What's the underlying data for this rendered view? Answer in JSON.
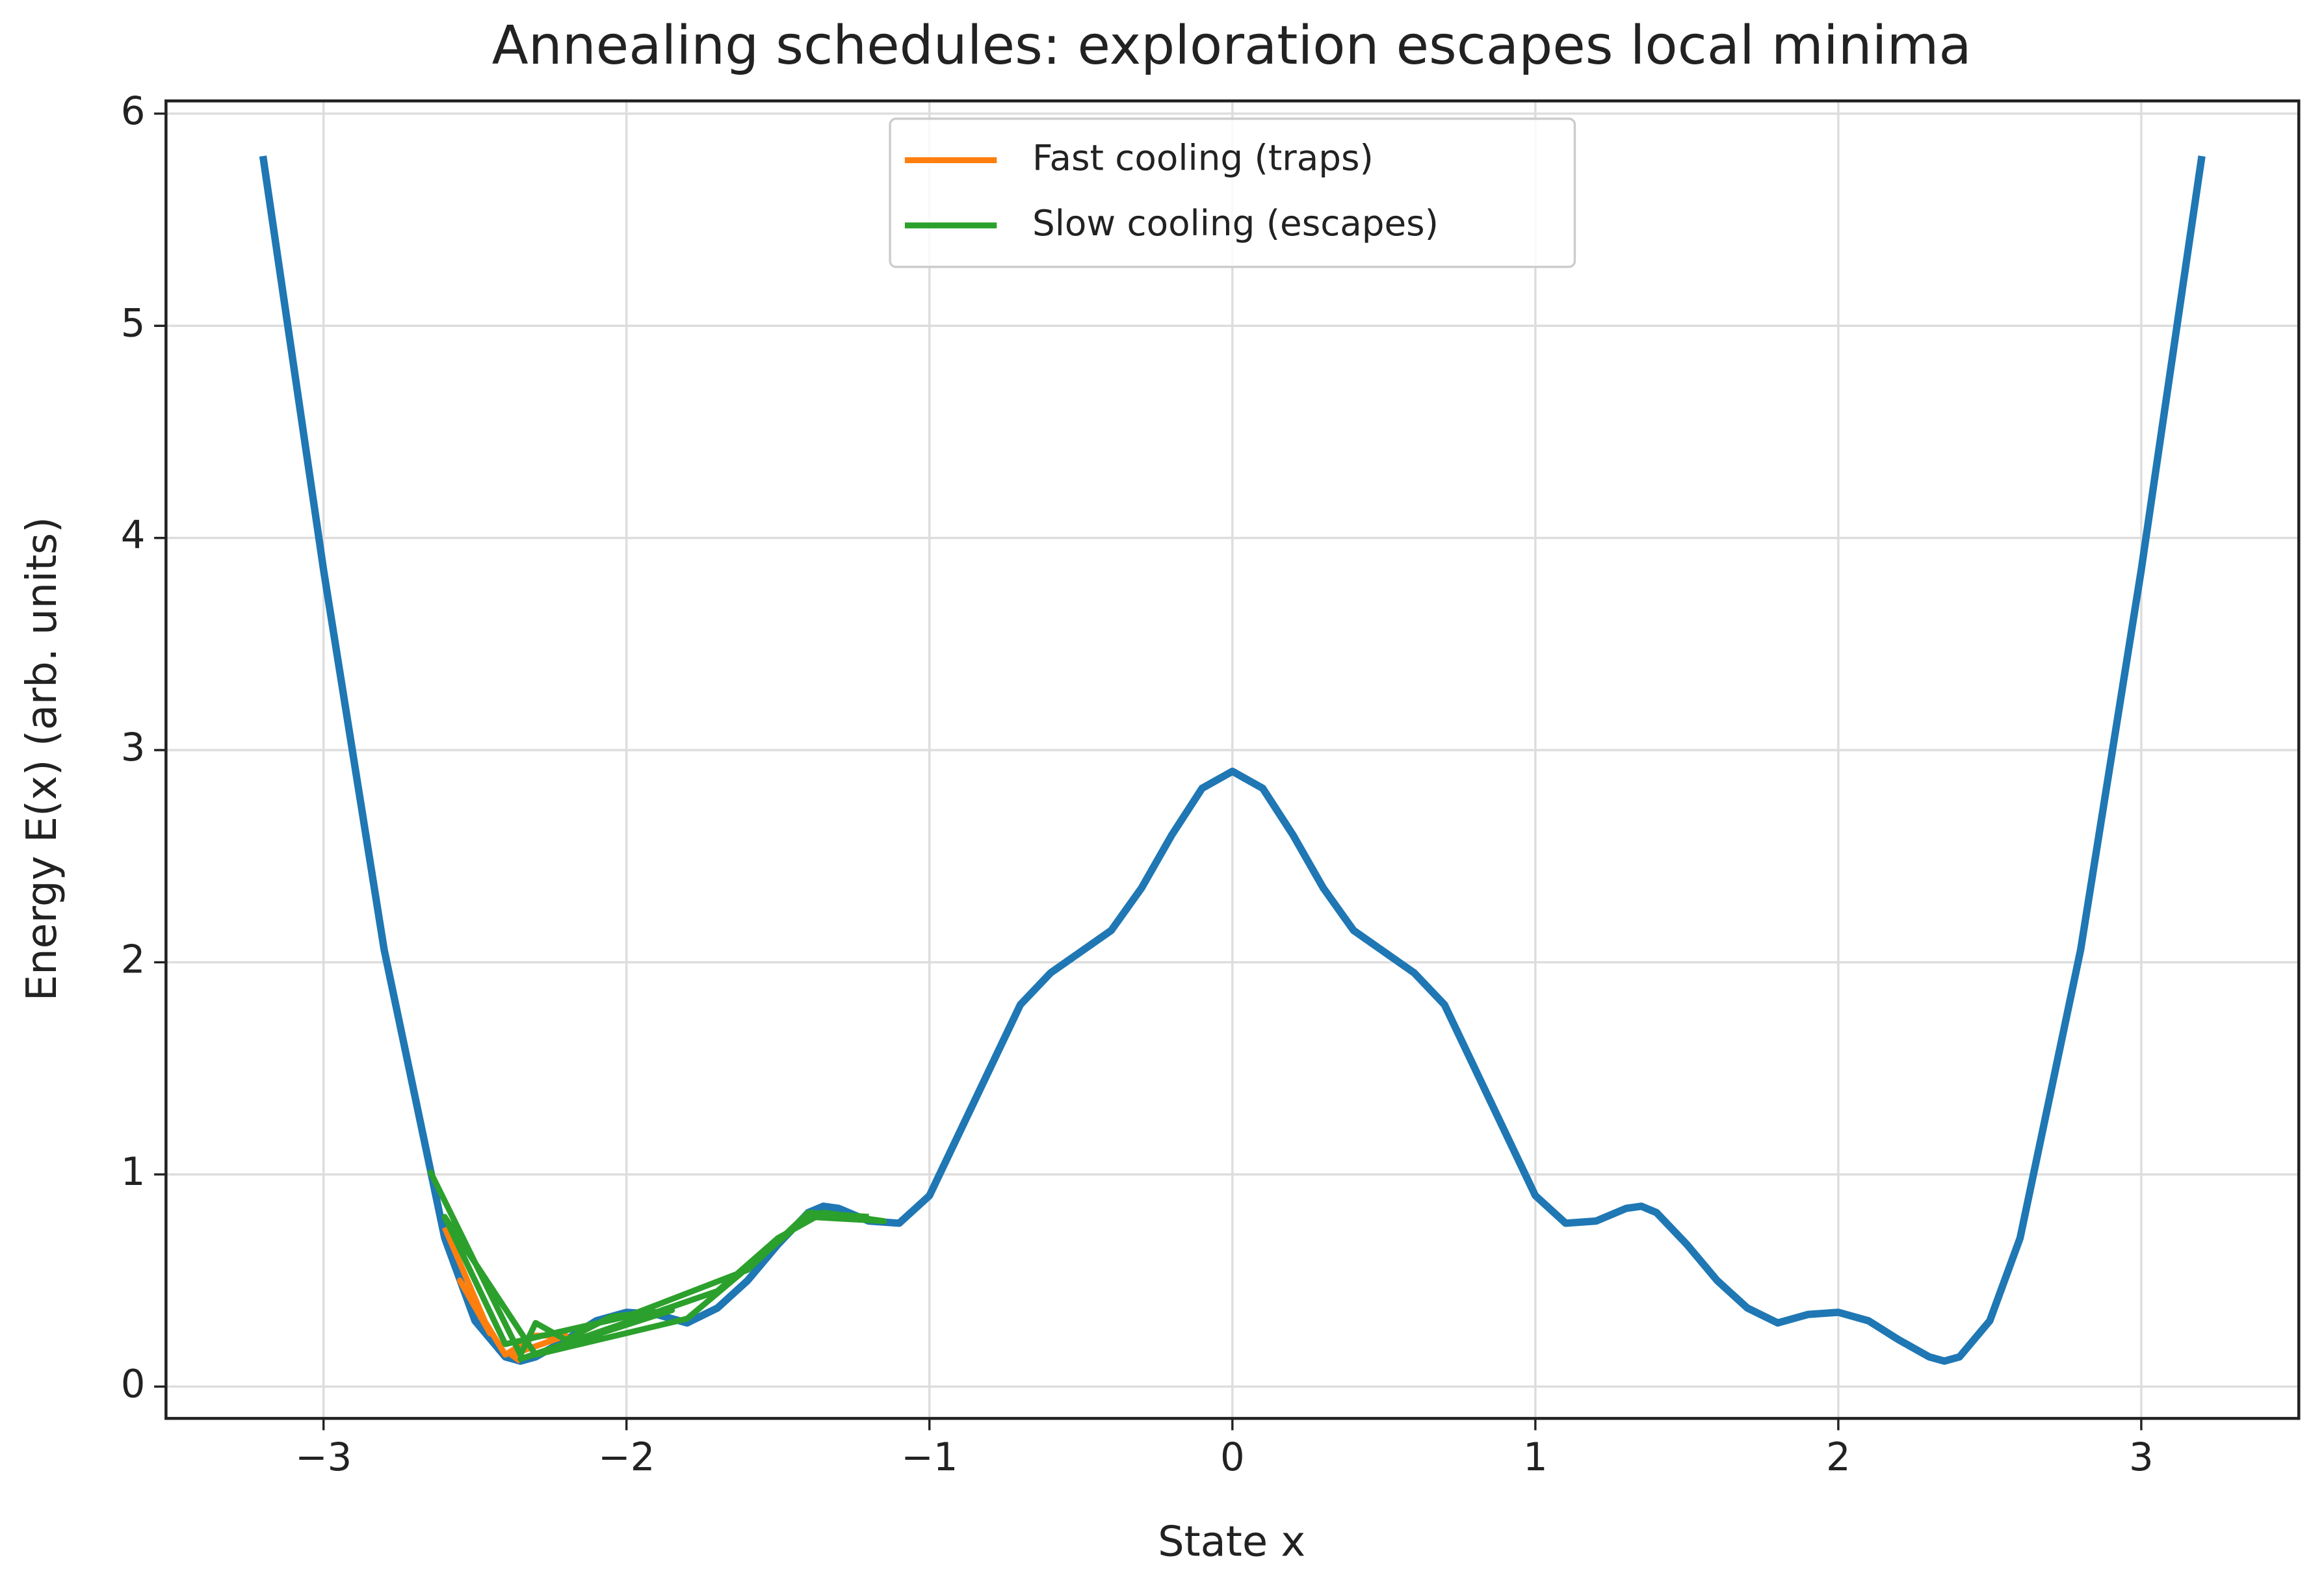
{
  "chart_data": {
    "type": "line",
    "title": "Annealing schedules: exploration escapes local minima",
    "xlabel": "State x",
    "ylabel": "Energy E(x) (arb. units)",
    "xlim": [
      -3.52,
      3.52
    ],
    "ylim": [
      -0.15,
      6.06
    ],
    "xticks": [
      {
        "value": -3,
        "label": "−3"
      },
      {
        "value": -2,
        "label": "−2"
      },
      {
        "value": -1,
        "label": "−1"
      },
      0,
      1,
      2,
      3
    ],
    "yticks": [
      0,
      1,
      2,
      3,
      4,
      5,
      6
    ],
    "grid": true,
    "legend_loc": "upper center",
    "series": [
      {
        "color": "#1f77b4",
        "x": [
          -3.2,
          -3.0,
          -2.8,
          -2.6,
          -2.5,
          -2.4,
          -2.35,
          -2.3,
          -2.2,
          -2.1,
          -2.0,
          -1.9,
          -1.8,
          -1.7,
          -1.6,
          -1.5,
          -1.4,
          -1.35,
          -1.3,
          -1.2,
          -1.1,
          -1.0,
          -0.9,
          -0.8,
          -0.7,
          -0.6,
          -0.5,
          -0.4,
          -0.3,
          -0.2,
          -0.1,
          0,
          0.1,
          0.2,
          0.3,
          0.4,
          0.5,
          0.6,
          0.7,
          0.8,
          0.9,
          1.0,
          1.1,
          1.2,
          1.3,
          1.35,
          1.4,
          1.5,
          1.6,
          1.7,
          1.8,
          1.9,
          2.0,
          2.1,
          2.2,
          2.3,
          2.35,
          2.4,
          2.5,
          2.6,
          2.8,
          3.0,
          3.2
        ],
        "values": [
          5.8,
          3.85,
          2.06,
          0.7,
          0.31,
          0.14,
          0.12,
          0.14,
          0.22,
          0.31,
          0.35,
          0.34,
          0.3,
          0.37,
          0.5,
          0.67,
          0.82,
          0.85,
          0.84,
          0.78,
          0.77,
          0.9,
          1.2,
          1.5,
          1.8,
          1.95,
          2.05,
          2.15,
          2.35,
          2.6,
          2.82,
          2.9,
          2.82,
          2.6,
          2.35,
          2.15,
          2.05,
          1.95,
          1.8,
          1.5,
          1.2,
          0.9,
          0.77,
          0.78,
          0.84,
          0.85,
          0.82,
          0.67,
          0.5,
          0.37,
          0.3,
          0.34,
          0.35,
          0.31,
          0.22,
          0.14,
          0.12,
          0.14,
          0.31,
          0.7,
          2.06,
          3.85,
          5.8
        ]
      },
      {
        "name": "Fast cooling (traps)",
        "color": "#ff7f0e",
        "x": [
          -2.6,
          -2.45,
          -2.55,
          -2.4,
          -2.3,
          -2.2,
          -2.38,
          -2.35
        ],
        "values": [
          0.75,
          0.25,
          0.5,
          0.15,
          0.24,
          0.24,
          0.15,
          0.12
        ]
      },
      {
        "name": "Slow cooling (escapes)",
        "color": "#2ca02c",
        "x": [
          -2.65,
          -2.35,
          -2.3,
          -2.2,
          -2.05,
          -1.85,
          -2.35,
          -1.7,
          -1.5,
          -1.35,
          -1.15,
          -1.4,
          -1.8,
          -2.3,
          -2.6,
          -2.4,
          -2.0,
          -1.6,
          -1.4,
          -1.2
        ],
        "values": [
          1.02,
          0.15,
          0.3,
          0.22,
          0.33,
          0.36,
          0.13,
          0.45,
          0.7,
          0.82,
          0.78,
          0.8,
          0.32,
          0.15,
          0.8,
          0.2,
          0.33,
          0.55,
          0.82,
          0.8
        ]
      }
    ]
  }
}
